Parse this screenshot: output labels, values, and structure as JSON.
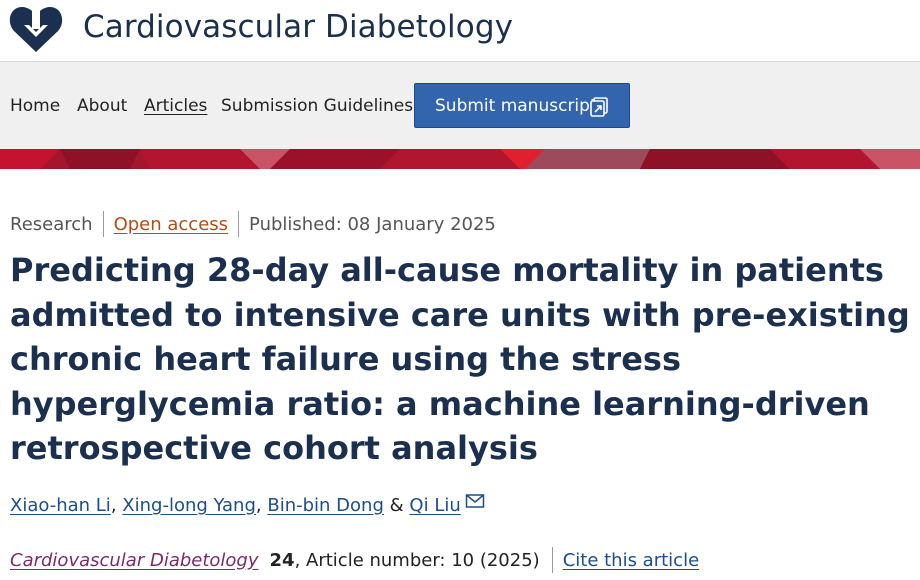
{
  "header": {
    "journal_title": "Cardiovascular Diabetology",
    "logo_icon": "heart-arrow-logo-icon"
  },
  "nav": {
    "items": [
      {
        "label": "Home"
      },
      {
        "label": "About"
      },
      {
        "label": "Articles",
        "active": true
      },
      {
        "label": "Submission Guidelines"
      }
    ],
    "submit_label": "Submit manuscript",
    "submit_icon": "external-link-icon"
  },
  "colors": {
    "brand_navy": "#1b2f4e",
    "button_blue": "#3265ad",
    "banner_red": "#c41230",
    "open_access": "#b24c18",
    "link_blue": "#1b4d8f",
    "journal_link": "#7a2b6b"
  },
  "article": {
    "type": "Research",
    "access": "Open access",
    "published": "Published: 08 January 2025",
    "title": "Predicting 28-day all-cause mortality in patients admitted to intensive care units with pre-existing chronic heart failure using the stress hyperglycemia ratio: a machine learning-driven retrospective cohort analysis",
    "authors": [
      {
        "name": "Xiao-han Li"
      },
      {
        "name": "Xing-long Yang"
      },
      {
        "name": "Bin-bin Dong"
      },
      {
        "name": "Qi Liu"
      }
    ],
    "author_separator": ",",
    "author_last_joiner": "&",
    "corresponding_icon": "mail-icon",
    "citation": {
      "journal": "Cardiovascular Diabetology",
      "volume": "24",
      "article_number": ", Article number: 10 (2025)",
      "cite_label": "Cite this article"
    }
  }
}
